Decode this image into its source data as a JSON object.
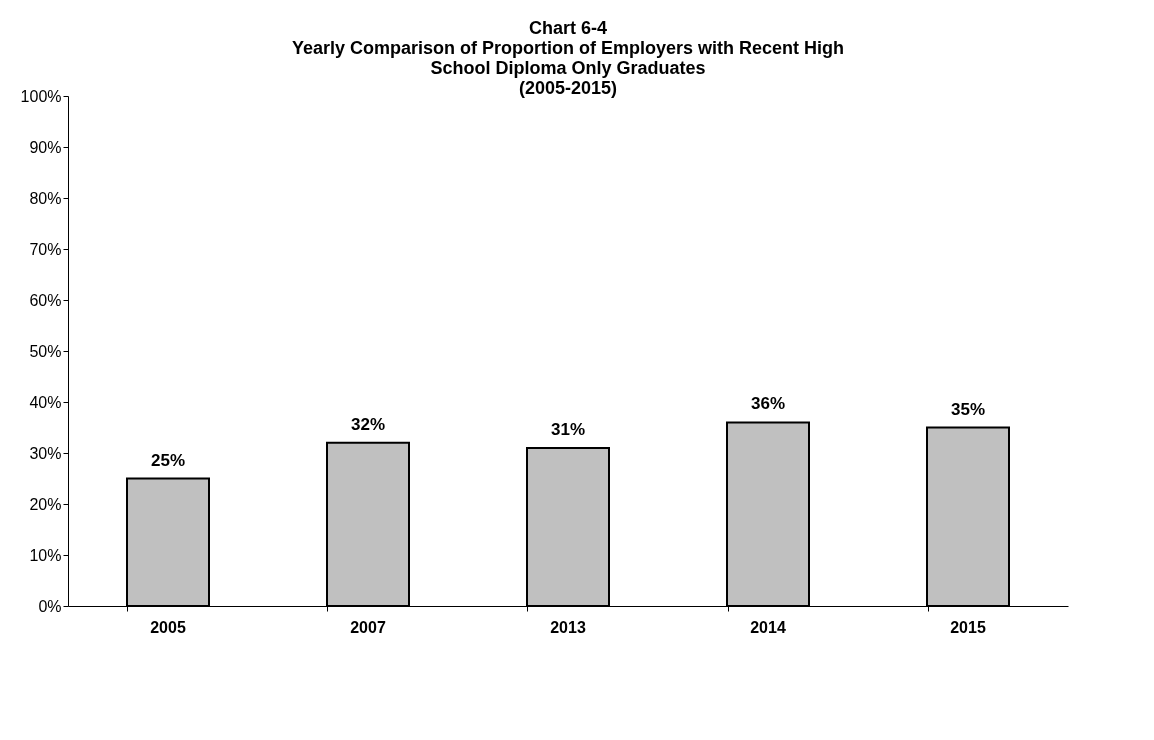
{
  "chart_data": {
    "type": "bar",
    "title": "Chart 6-4\nYearly Comparison of Proportion of Employers with Recent High\nSchool Diploma Only Graduates\n(2005-2015)",
    "categories": [
      "2005",
      "2007",
      "2013",
      "2014",
      "2015"
    ],
    "values": [
      25,
      32,
      31,
      36,
      35
    ],
    "value_labels": [
      "25%",
      "32%",
      "31%",
      "36%",
      "35%"
    ],
    "color": "#c0c0c0",
    "ylim": [
      0,
      100
    ],
    "yticks": [
      {
        "value": 0,
        "label": "0%"
      },
      {
        "value": 10,
        "label": "10%"
      },
      {
        "value": 20,
        "label": "20%"
      },
      {
        "value": 30,
        "label": "30%"
      },
      {
        "value": 40,
        "label": "40%"
      },
      {
        "value": 50,
        "label": "50%"
      },
      {
        "value": 60,
        "label": "60%"
      },
      {
        "value": 70,
        "label": "70%"
      },
      {
        "value": 80,
        "label": "80%"
      },
      {
        "value": 90,
        "label": "90%"
      },
      {
        "value": 100,
        "label": "100%"
      }
    ],
    "grid": false
  }
}
